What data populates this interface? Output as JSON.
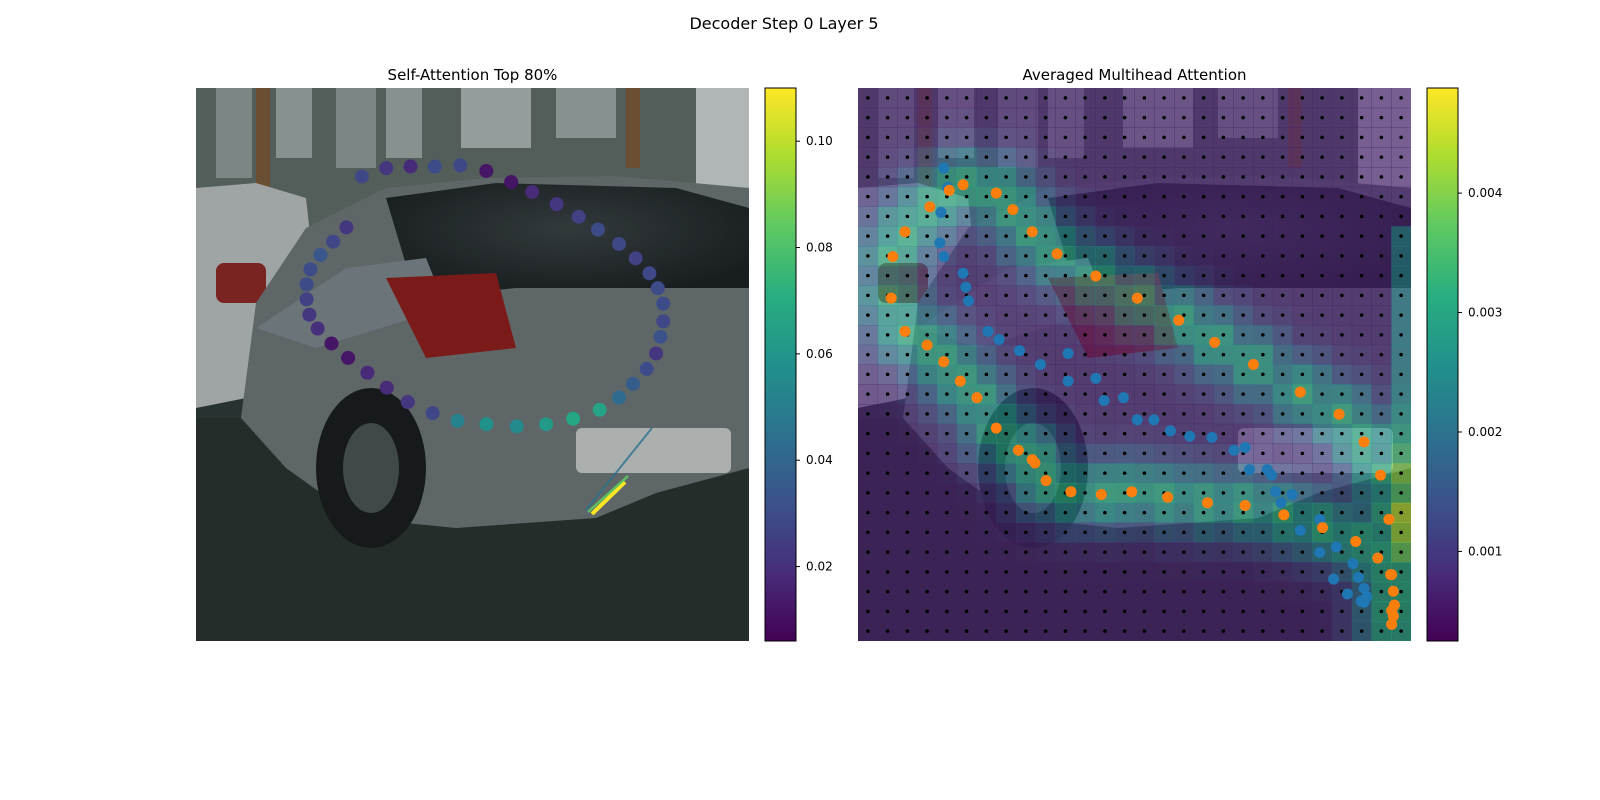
{
  "figure": {
    "title": "Decoder Step 0 Layer 5"
  },
  "chart_data": [
    {
      "type": "scatter",
      "title": "Self-Attention Top 80%",
      "background": "photo: gray hatchback car parked on a street",
      "colormap": "viridis",
      "colorbar": {
        "range": [
          0.006,
          0.11
        ],
        "ticks": [
          0.02,
          0.04,
          0.06,
          0.08,
          0.1
        ],
        "tick_labels": [
          "0.02",
          "0.04",
          "0.06",
          "0.08",
          "0.10"
        ]
      },
      "points_x": [
        0.3,
        0.344,
        0.388,
        0.432,
        0.478,
        0.525,
        0.57,
        0.608,
        0.652,
        0.692,
        0.727,
        0.765,
        0.795,
        0.82,
        0.835,
        0.845,
        0.845,
        0.84,
        0.832,
        0.815,
        0.79,
        0.765,
        0.73,
        0.682,
        0.633,
        0.58,
        0.525,
        0.473,
        0.428,
        0.383,
        0.345,
        0.31,
        0.275,
        0.245,
        0.22,
        0.205,
        0.2,
        0.2,
        0.207,
        0.225,
        0.248,
        0.272
      ],
      "points_y": [
        0.84,
        0.855,
        0.858,
        0.858,
        0.86,
        0.85,
        0.83,
        0.812,
        0.79,
        0.767,
        0.744,
        0.718,
        0.692,
        0.665,
        0.638,
        0.61,
        0.578,
        0.55,
        0.52,
        0.492,
        0.465,
        0.44,
        0.418,
        0.402,
        0.392,
        0.388,
        0.392,
        0.398,
        0.412,
        0.432,
        0.458,
        0.485,
        0.512,
        0.538,
        0.565,
        0.59,
        0.618,
        0.645,
        0.672,
        0.698,
        0.722,
        0.748
      ],
      "attention": [
        0.028,
        0.022,
        0.018,
        0.03,
        0.028,
        0.012,
        0.012,
        0.018,
        0.022,
        0.026,
        0.03,
        0.028,
        0.026,
        0.028,
        0.03,
        0.03,
        0.028,
        0.032,
        0.022,
        0.03,
        0.036,
        0.042,
        0.066,
        0.068,
        0.062,
        0.055,
        0.058,
        0.052,
        0.028,
        0.022,
        0.018,
        0.018,
        0.012,
        0.012,
        0.02,
        0.022,
        0.026,
        0.03,
        0.03,
        0.034,
        0.028,
        0.022
      ]
    },
    {
      "type": "heatmap",
      "title": "Averaged Multihead Attention",
      "background": "photo: gray hatchback car parked on a street",
      "colormap": "viridis",
      "colorbar": {
        "range": [
          0.00025,
          0.00488
        ],
        "ticks": [
          0.001,
          0.002,
          0.003,
          0.004
        ],
        "tick_labels": [
          "0.001",
          "0.002",
          "0.003",
          "0.004"
        ]
      },
      "grid": {
        "rows": 28,
        "cols": 28,
        "reference_points": "black dots at every grid cell"
      },
      "blue_points_x": [
        0.155,
        0.162,
        0.15,
        0.148,
        0.155,
        0.19,
        0.195,
        0.2,
        0.235,
        0.255,
        0.292,
        0.33,
        0.38,
        0.445,
        0.505,
        0.565,
        0.64,
        0.7,
        0.708,
        0.748,
        0.755,
        0.765,
        0.8,
        0.835,
        0.86,
        0.885,
        0.91,
        0.915,
        0.92,
        0.915,
        0.905,
        0.895,
        0.865,
        0.835,
        0.785,
        0.74,
        0.68,
        0.6,
        0.535,
        0.48,
        0.43,
        0.38
      ],
      "blue_points_y": [
        0.855,
        0.82,
        0.775,
        0.72,
        0.695,
        0.665,
        0.64,
        0.615,
        0.56,
        0.545,
        0.525,
        0.5,
        0.47,
        0.435,
        0.4,
        0.38,
        0.368,
        0.35,
        0.31,
        0.3,
        0.27,
        0.25,
        0.2,
        0.16,
        0.112,
        0.085,
        0.072,
        0.07,
        0.08,
        0.095,
        0.115,
        0.14,
        0.17,
        0.22,
        0.265,
        0.31,
        0.345,
        0.37,
        0.4,
        0.44,
        0.475,
        0.52
      ],
      "orange_points_x": [
        0.19,
        0.165,
        0.13,
        0.085,
        0.063,
        0.06,
        0.085,
        0.125,
        0.155,
        0.185,
        0.215,
        0.25,
        0.29,
        0.315,
        0.32,
        0.34,
        0.385,
        0.44,
        0.495,
        0.56,
        0.632,
        0.7,
        0.77,
        0.84,
        0.9,
        0.94,
        0.963,
        0.968,
        0.97,
        0.968,
        0.965,
        0.965,
        0.965,
        0.96,
        0.945,
        0.915,
        0.87,
        0.8,
        0.715,
        0.645,
        0.58,
        0.505,
        0.43,
        0.36,
        0.315,
        0.28,
        0.25
      ],
      "orange_points_y": [
        0.825,
        0.815,
        0.785,
        0.74,
        0.695,
        0.62,
        0.56,
        0.535,
        0.505,
        0.47,
        0.44,
        0.385,
        0.345,
        0.328,
        0.322,
        0.29,
        0.27,
        0.265,
        0.27,
        0.26,
        0.25,
        0.245,
        0.228,
        0.205,
        0.18,
        0.15,
        0.12,
        0.09,
        0.065,
        0.045,
        0.03,
        0.055,
        0.12,
        0.22,
        0.3,
        0.36,
        0.41,
        0.45,
        0.5,
        0.54,
        0.58,
        0.62,
        0.66,
        0.7,
        0.74,
        0.78,
        0.81
      ]
    }
  ]
}
